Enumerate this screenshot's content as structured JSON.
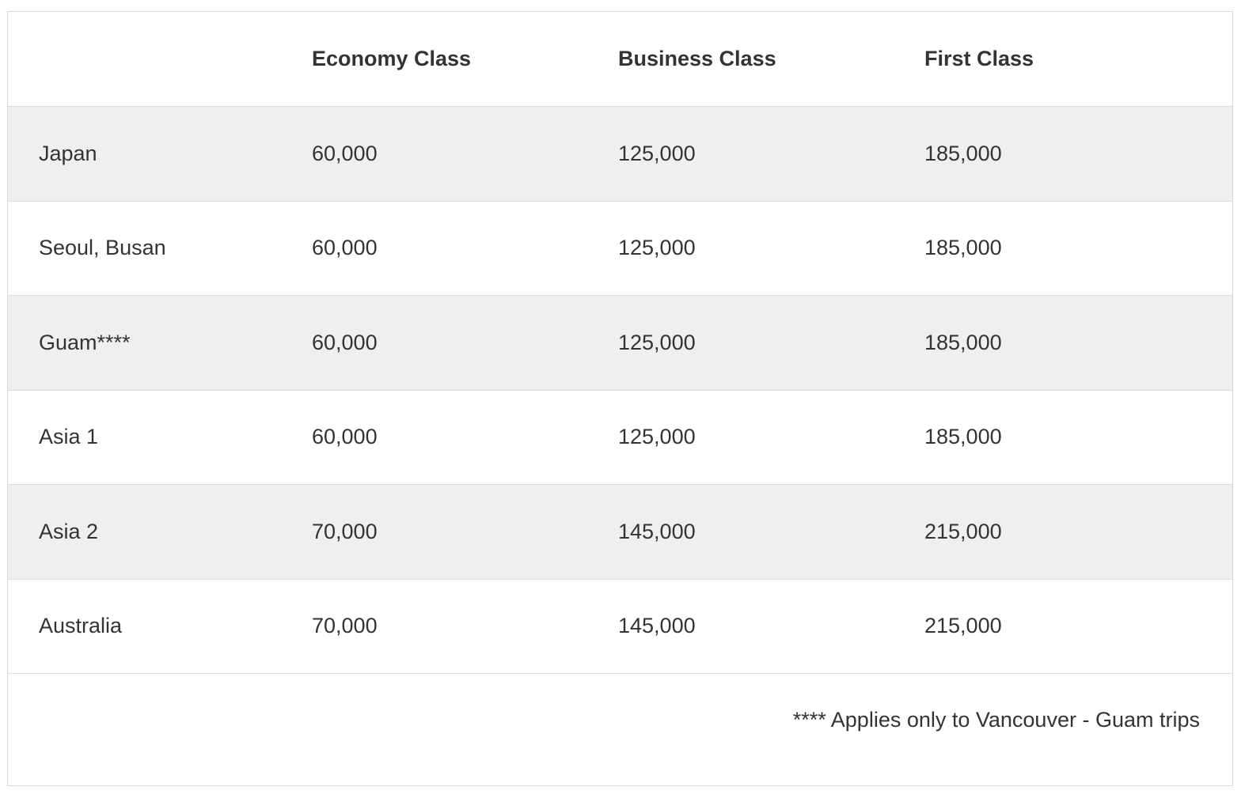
{
  "table": {
    "headers": [
      "",
      "Economy Class",
      "Business Class",
      "First Class"
    ],
    "rows": [
      {
        "region": "Japan",
        "economy": "60,000",
        "business": "125,000",
        "first": "185,000"
      },
      {
        "region": "Seoul, Busan",
        "economy": "60,000",
        "business": "125,000",
        "first": "185,000"
      },
      {
        "region": "Guam****",
        "economy": "60,000",
        "business": "125,000",
        "first": "185,000"
      },
      {
        "region": "Asia 1",
        "economy": "60,000",
        "business": "125,000",
        "first": "185,000"
      },
      {
        "region": "Asia 2",
        "economy": "70,000",
        "business": "145,000",
        "first": "215,000"
      },
      {
        "region": "Australia",
        "economy": "70,000",
        "business": "145,000",
        "first": "215,000"
      }
    ],
    "footnote": "**** Applies only to Vancouver - Guam trips"
  }
}
